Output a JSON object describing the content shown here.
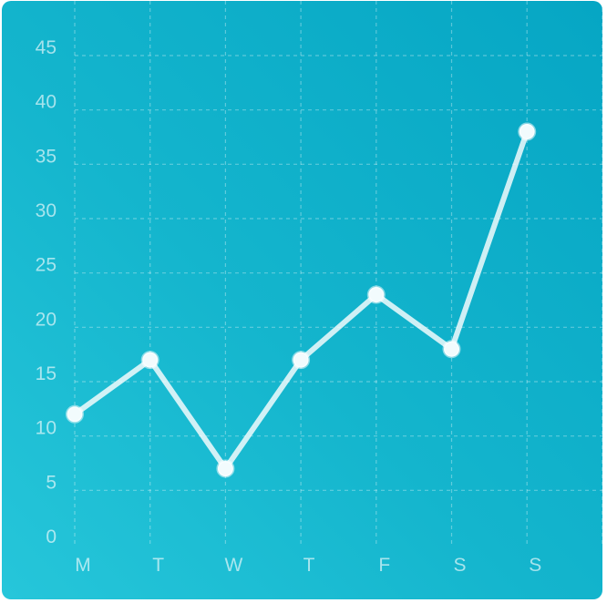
{
  "chart_data": {
    "type": "line",
    "title": "",
    "xlabel": "",
    "ylabel": "",
    "categories": [
      "M",
      "T",
      "W",
      "T",
      "F",
      "S",
      "S"
    ],
    "series": [
      {
        "values": [
          12,
          17,
          7,
          17,
          23,
          18,
          38
        ]
      }
    ],
    "ylim": [
      0,
      45
    ],
    "yticks": [
      "0",
      "5",
      "10",
      "15",
      "20",
      "25",
      "30",
      "35",
      "40",
      "45"
    ],
    "grid": true,
    "legend": "none",
    "colors": {
      "background_start": "#26c6da",
      "background_end": "#06a6c4",
      "line": "#e8f9fc",
      "grid": "#8fdde9"
    }
  }
}
